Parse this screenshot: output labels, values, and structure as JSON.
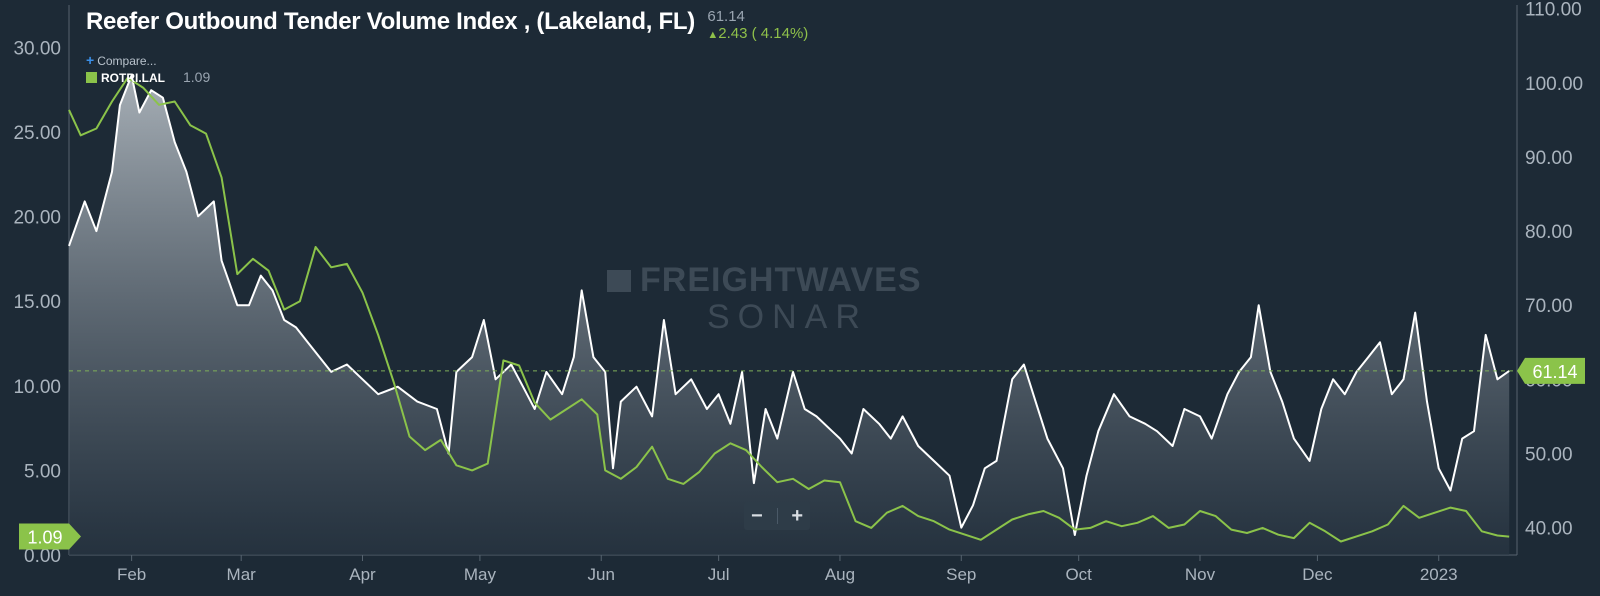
{
  "header": {
    "title": "Reefer Outbound Tender Volume Index , (Lakeland, FL)",
    "price_value": "61.14",
    "price_change": "2.43 ( 4.14%)"
  },
  "compare_label": "Compare...",
  "legend": {
    "name": "ROTRI.LAL",
    "value": "1.09",
    "color": "#8bc34a"
  },
  "watermark": {
    "line1": "FREIGHTWAVES",
    "line2": "SONAR"
  },
  "zoom": {
    "minus": "−",
    "plus": "+"
  },
  "colors": {
    "background": "#1d2a36",
    "white_series": "#ffffff",
    "green_series": "#8bc34a"
  },
  "chart_data": {
    "type": "line",
    "title": "Reefer Outbound Tender Volume Index , (Lakeland, FL)",
    "x_ticks": [
      "Feb",
      "Mar",
      "Apr",
      "May",
      "Jun",
      "Jul",
      "Aug",
      "Sep",
      "Oct",
      "Nov",
      "Dec",
      "2023"
    ],
    "x_range": [
      "2022-01-16",
      "2023-01-21"
    ],
    "y_left": {
      "ticks": [
        "0.00",
        "5.00",
        "10.00",
        "15.00",
        "20.00",
        "25.00",
        "30.00"
      ],
      "range": [
        0,
        32.5
      ]
    },
    "y_right": {
      "ticks": [
        "40.00",
        "50.00",
        "60.00",
        "70.00",
        "80.00",
        "90.00",
        "100.00",
        "110.00"
      ],
      "range": [
        36.3,
        110.5
      ]
    },
    "last_value_marker_right": "61.14",
    "last_value_marker_left": "1.09",
    "grid": false,
    "series": [
      {
        "axis": "right",
        "color": "#ffffff",
        "fill": true,
        "points": [
          [
            "2022-01-16",
            78
          ],
          [
            "2022-01-20",
            84
          ],
          [
            "2022-01-23",
            80
          ],
          [
            "2022-01-27",
            88
          ],
          [
            "2022-01-29",
            97
          ],
          [
            "2022-02-01",
            101
          ],
          [
            "2022-02-03",
            96
          ],
          [
            "2022-02-06",
            99
          ],
          [
            "2022-02-09",
            98
          ],
          [
            "2022-02-12",
            92
          ],
          [
            "2022-02-15",
            88
          ],
          [
            "2022-02-18",
            82
          ],
          [
            "2022-02-22",
            84
          ],
          [
            "2022-02-24",
            76
          ],
          [
            "2022-02-28",
            70
          ],
          [
            "2022-03-03",
            70
          ],
          [
            "2022-03-06",
            74
          ],
          [
            "2022-03-09",
            72
          ],
          [
            "2022-03-12",
            68
          ],
          [
            "2022-03-15",
            67
          ],
          [
            "2022-03-18",
            65
          ],
          [
            "2022-03-21",
            63
          ],
          [
            "2022-03-24",
            61
          ],
          [
            "2022-03-28",
            62
          ],
          [
            "2022-04-01",
            60
          ],
          [
            "2022-04-05",
            58
          ],
          [
            "2022-04-10",
            59
          ],
          [
            "2022-04-15",
            57
          ],
          [
            "2022-04-20",
            56
          ],
          [
            "2022-04-23",
            50
          ],
          [
            "2022-04-25",
            61
          ],
          [
            "2022-04-29",
            63
          ],
          [
            "2022-05-02",
            68
          ],
          [
            "2022-05-05",
            60
          ],
          [
            "2022-05-09",
            62
          ],
          [
            "2022-05-12",
            59
          ],
          [
            "2022-05-15",
            56
          ],
          [
            "2022-05-18",
            61
          ],
          [
            "2022-05-22",
            58
          ],
          [
            "2022-05-25",
            63
          ],
          [
            "2022-05-27",
            72
          ],
          [
            "2022-05-30",
            63
          ],
          [
            "2022-06-02",
            61
          ],
          [
            "2022-06-04",
            48
          ],
          [
            "2022-06-06",
            57
          ],
          [
            "2022-06-10",
            59
          ],
          [
            "2022-06-14",
            55
          ],
          [
            "2022-06-17",
            68
          ],
          [
            "2022-06-20",
            58
          ],
          [
            "2022-06-24",
            60
          ],
          [
            "2022-06-28",
            56
          ],
          [
            "2022-07-01",
            58
          ],
          [
            "2022-07-04",
            54
          ],
          [
            "2022-07-07",
            61
          ],
          [
            "2022-07-10",
            46
          ],
          [
            "2022-07-13",
            56
          ],
          [
            "2022-07-16",
            52
          ],
          [
            "2022-07-20",
            61
          ],
          [
            "2022-07-23",
            56
          ],
          [
            "2022-07-26",
            55
          ],
          [
            "2022-07-30",
            53
          ],
          [
            "2022-08-01",
            52
          ],
          [
            "2022-08-04",
            50
          ],
          [
            "2022-08-07",
            56
          ],
          [
            "2022-08-11",
            54
          ],
          [
            "2022-08-14",
            52
          ],
          [
            "2022-08-17",
            55
          ],
          [
            "2022-08-21",
            51
          ],
          [
            "2022-08-25",
            49
          ],
          [
            "2022-08-29",
            47
          ],
          [
            "2022-09-01",
            40
          ],
          [
            "2022-09-04",
            43
          ],
          [
            "2022-09-07",
            48
          ],
          [
            "2022-09-10",
            49
          ],
          [
            "2022-09-14",
            60
          ],
          [
            "2022-09-17",
            62
          ],
          [
            "2022-09-20",
            57
          ],
          [
            "2022-09-23",
            52
          ],
          [
            "2022-09-27",
            48
          ],
          [
            "2022-09-30",
            39
          ],
          [
            "2022-10-03",
            47
          ],
          [
            "2022-10-06",
            53
          ],
          [
            "2022-10-10",
            58
          ],
          [
            "2022-10-14",
            55
          ],
          [
            "2022-10-18",
            54
          ],
          [
            "2022-10-21",
            53
          ],
          [
            "2022-10-25",
            51
          ],
          [
            "2022-10-28",
            56
          ],
          [
            "2022-11-01",
            55
          ],
          [
            "2022-11-04",
            52
          ],
          [
            "2022-11-08",
            58
          ],
          [
            "2022-11-11",
            61
          ],
          [
            "2022-11-14",
            63
          ],
          [
            "2022-11-16",
            70
          ],
          [
            "2022-11-19",
            61
          ],
          [
            "2022-11-22",
            57
          ],
          [
            "2022-11-25",
            52
          ],
          [
            "2022-11-29",
            49
          ],
          [
            "2022-12-02",
            56
          ],
          [
            "2022-12-05",
            60
          ],
          [
            "2022-12-08",
            58
          ],
          [
            "2022-12-11",
            61
          ],
          [
            "2022-12-14",
            63
          ],
          [
            "2022-12-17",
            65
          ],
          [
            "2022-12-20",
            58
          ],
          [
            "2022-12-23",
            60
          ],
          [
            "2022-12-26",
            69
          ],
          [
            "2022-12-29",
            57
          ],
          [
            "2023-01-01",
            48
          ],
          [
            "2023-01-04",
            45
          ],
          [
            "2023-01-07",
            52
          ],
          [
            "2023-01-10",
            53
          ],
          [
            "2023-01-13",
            66
          ],
          [
            "2023-01-16",
            60
          ],
          [
            "2023-01-19",
            61.14
          ]
        ]
      },
      {
        "name": "ROTRI.LAL",
        "axis": "left",
        "color": "#8bc34a",
        "points": [
          [
            "2022-01-16",
            26.3
          ],
          [
            "2022-01-19",
            24.8
          ],
          [
            "2022-01-23",
            25.2
          ],
          [
            "2022-01-27",
            26.8
          ],
          [
            "2022-01-31",
            28.2
          ],
          [
            "2022-02-04",
            27.6
          ],
          [
            "2022-02-08",
            26.6
          ],
          [
            "2022-02-12",
            26.8
          ],
          [
            "2022-02-16",
            25.4
          ],
          [
            "2022-02-20",
            24.9
          ],
          [
            "2022-02-24",
            22.3
          ],
          [
            "2022-02-28",
            16.6
          ],
          [
            "2022-03-04",
            17.5
          ],
          [
            "2022-03-08",
            16.8
          ],
          [
            "2022-03-12",
            14.5
          ],
          [
            "2022-03-16",
            15.0
          ],
          [
            "2022-03-20",
            18.2
          ],
          [
            "2022-03-24",
            17.0
          ],
          [
            "2022-03-28",
            17.2
          ],
          [
            "2022-04-01",
            15.5
          ],
          [
            "2022-04-05",
            13.0
          ],
          [
            "2022-04-09",
            10.2
          ],
          [
            "2022-04-13",
            7.0
          ],
          [
            "2022-04-17",
            6.2
          ],
          [
            "2022-04-21",
            6.8
          ],
          [
            "2022-04-25",
            5.3
          ],
          [
            "2022-04-29",
            5.0
          ],
          [
            "2022-05-03",
            5.4
          ],
          [
            "2022-05-07",
            11.5
          ],
          [
            "2022-05-11",
            11.2
          ],
          [
            "2022-05-15",
            9.0
          ],
          [
            "2022-05-19",
            8.0
          ],
          [
            "2022-05-23",
            8.6
          ],
          [
            "2022-05-27",
            9.2
          ],
          [
            "2022-05-31",
            8.3
          ],
          [
            "2022-06-02",
            5.0
          ],
          [
            "2022-06-06",
            4.5
          ],
          [
            "2022-06-10",
            5.2
          ],
          [
            "2022-06-14",
            6.4
          ],
          [
            "2022-06-18",
            4.5
          ],
          [
            "2022-06-22",
            4.2
          ],
          [
            "2022-06-26",
            4.9
          ],
          [
            "2022-06-30",
            6.0
          ],
          [
            "2022-07-04",
            6.6
          ],
          [
            "2022-07-08",
            6.2
          ],
          [
            "2022-07-12",
            5.2
          ],
          [
            "2022-07-16",
            4.3
          ],
          [
            "2022-07-20",
            4.5
          ],
          [
            "2022-07-24",
            3.9
          ],
          [
            "2022-07-28",
            4.4
          ],
          [
            "2022-08-01",
            4.3
          ],
          [
            "2022-08-05",
            2.0
          ],
          [
            "2022-08-09",
            1.6
          ],
          [
            "2022-08-13",
            2.5
          ],
          [
            "2022-08-17",
            2.9
          ],
          [
            "2022-08-21",
            2.3
          ],
          [
            "2022-08-25",
            2.0
          ],
          [
            "2022-08-29",
            1.5
          ],
          [
            "2022-09-02",
            1.2
          ],
          [
            "2022-09-06",
            0.9
          ],
          [
            "2022-09-10",
            1.5
          ],
          [
            "2022-09-14",
            2.1
          ],
          [
            "2022-09-18",
            2.4
          ],
          [
            "2022-09-22",
            2.6
          ],
          [
            "2022-09-26",
            2.2
          ],
          [
            "2022-09-30",
            1.5
          ],
          [
            "2022-10-04",
            1.6
          ],
          [
            "2022-10-08",
            2.0
          ],
          [
            "2022-10-12",
            1.7
          ],
          [
            "2022-10-16",
            1.9
          ],
          [
            "2022-10-20",
            2.3
          ],
          [
            "2022-10-24",
            1.6
          ],
          [
            "2022-10-28",
            1.8
          ],
          [
            "2022-11-01",
            2.6
          ],
          [
            "2022-11-05",
            2.3
          ],
          [
            "2022-11-09",
            1.5
          ],
          [
            "2022-11-13",
            1.3
          ],
          [
            "2022-11-17",
            1.6
          ],
          [
            "2022-11-21",
            1.2
          ],
          [
            "2022-11-25",
            1.0
          ],
          [
            "2022-11-29",
            1.9
          ],
          [
            "2022-12-03",
            1.4
          ],
          [
            "2022-12-07",
            0.8
          ],
          [
            "2022-12-11",
            1.1
          ],
          [
            "2022-12-15",
            1.4
          ],
          [
            "2022-12-19",
            1.8
          ],
          [
            "2022-12-23",
            2.9
          ],
          [
            "2022-12-27",
            2.2
          ],
          [
            "2022-12-31",
            2.5
          ],
          [
            "2023-01-04",
            2.8
          ],
          [
            "2023-01-08",
            2.6
          ],
          [
            "2023-01-12",
            1.4
          ],
          [
            "2023-01-16",
            1.15
          ],
          [
            "2023-01-19",
            1.09
          ]
        ]
      }
    ]
  }
}
